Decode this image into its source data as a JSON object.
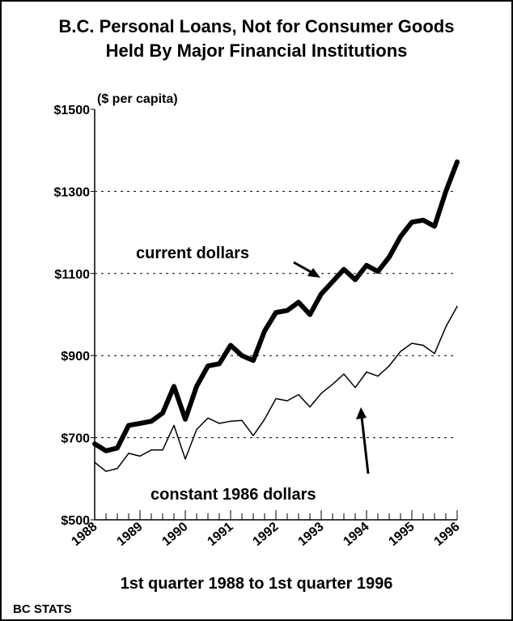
{
  "chart_data": {
    "type": "line",
    "title": [
      "B.C. Personal Loans, Not for Consumer Goods",
      "Held By Major Financial Institutions"
    ],
    "y_unit_label": "($ per capita)",
    "x_label": "1st quarter 1988 to 1st quarter 1996",
    "source": "BC STATS",
    "x": [
      1988,
      1988.25,
      1988.5,
      1988.75,
      1989,
      1989.25,
      1989.5,
      1989.75,
      1990,
      1990.25,
      1990.5,
      1990.75,
      1991,
      1991.25,
      1991.5,
      1991.75,
      1992,
      1992.25,
      1992.5,
      1992.75,
      1993,
      1993.25,
      1993.5,
      1993.75,
      1994,
      1994.25,
      1994.5,
      1994.75,
      1995,
      1995.25,
      1995.5,
      1995.75,
      1996
    ],
    "series": [
      {
        "name": "current dollars",
        "color": "#000000",
        "width": 6,
        "values": [
          685,
          668,
          675,
          730,
          735,
          740,
          760,
          825,
          745,
          825,
          875,
          880,
          925,
          900,
          888,
          960,
          1005,
          1010,
          1030,
          1000,
          1050,
          1080,
          1110,
          1085,
          1120,
          1105,
          1140,
          1190,
          1225,
          1230,
          1215,
          1300,
          1372
        ]
      },
      {
        "name": "constant 1986 dollars",
        "color": "#000000",
        "width": 1.5,
        "values": [
          640,
          618,
          625,
          662,
          655,
          670,
          670,
          730,
          648,
          720,
          748,
          735,
          740,
          742,
          705,
          745,
          795,
          790,
          805,
          775,
          808,
          830,
          855,
          822,
          860,
          850,
          875,
          910,
          930,
          925,
          905,
          970,
          1020
        ]
      }
    ],
    "xlim": [
      1988,
      1996
    ],
    "xticks": [
      1988,
      1989,
      1990,
      1991,
      1992,
      1993,
      1994,
      1995,
      1996
    ],
    "ylim": [
      500,
      1500
    ],
    "yticks": [
      {
        "value": 500,
        "label": "$500"
      },
      {
        "value": 700,
        "label": "$700"
      },
      {
        "value": 900,
        "label": "$900"
      },
      {
        "value": 1100,
        "label": "$1100"
      },
      {
        "value": 1300,
        "label": "$1300"
      },
      {
        "value": 1500,
        "label": "$1500"
      }
    ],
    "grid": true
  }
}
